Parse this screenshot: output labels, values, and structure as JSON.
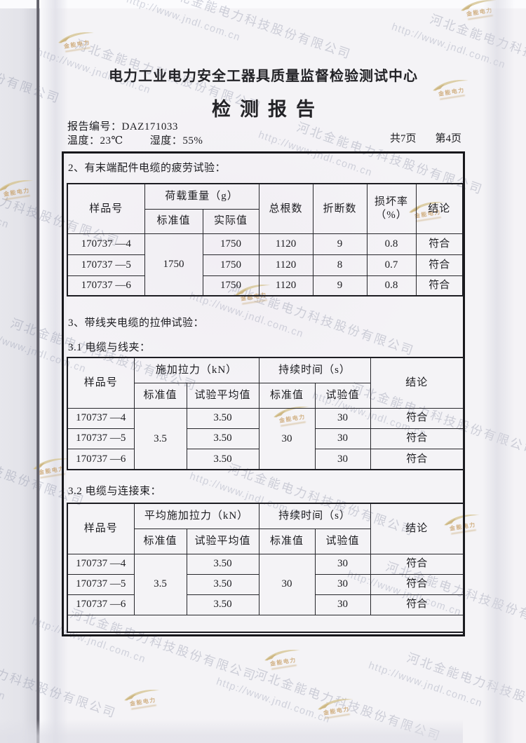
{
  "header": {
    "org": "电力工业电力安全工器具质量监督检验测试中心",
    "title": "检测报告",
    "report_no_label": "报告编号：",
    "report_no": "DAZ171033",
    "temp_label": "温度：",
    "temp": "23℃",
    "humidity_label": "湿度：",
    "humidity": "55%",
    "pages_total": "共7页",
    "page_current": "第4页"
  },
  "section2": {
    "title": "2、有末端配件电缆的疲劳试验：",
    "table": {
      "col_sample": "样品号",
      "col_load": "荷载重量（g）",
      "col_load_std": "标准值",
      "col_load_actual": "实际值",
      "col_total": "总根数",
      "col_broken": "折断数",
      "col_damage": "损坏率\n（%）",
      "col_conclusion": "结论",
      "std_value": "1750",
      "rows": [
        {
          "sample": "170737 —4",
          "actual": "1750",
          "total": "1120",
          "broken": "9",
          "damage": "0.8",
          "conclusion": "符合"
        },
        {
          "sample": "170737 —5",
          "actual": "1750",
          "total": "1120",
          "broken": "8",
          "damage": "0.7",
          "conclusion": "符合"
        },
        {
          "sample": "170737 —6",
          "actual": "1750",
          "total": "1120",
          "broken": "9",
          "damage": "0.8",
          "conclusion": "符合"
        }
      ]
    }
  },
  "section3": {
    "title": "3、带线夹电缆的拉伸试验：",
    "sub1": {
      "title": "3.1 电缆与线夹：",
      "table": {
        "col_sample": "样品号",
        "col_force": "施加拉力（kN）",
        "col_std": "标准值",
        "col_avg": "试验平均值",
        "col_time": "持续时间（s）",
        "col_time_std": "标准值",
        "col_time_test": "试验值",
        "col_conclusion": "结论",
        "force_std": "3.5",
        "time_std": "30",
        "rows": [
          {
            "sample": "170737 —4",
            "avg": "3.50",
            "time": "30",
            "conclusion": "符合"
          },
          {
            "sample": "170737 —5",
            "avg": "3.50",
            "time": "30",
            "conclusion": "符合"
          },
          {
            "sample": "170737 —6",
            "avg": "3.50",
            "time": "30",
            "conclusion": "符合"
          }
        ]
      }
    },
    "sub2": {
      "title": "3.2 电缆与连接束：",
      "table": {
        "col_sample": "样品号",
        "col_force": "平均施加拉力（kN）",
        "col_std": "标准值",
        "col_avg": "试验平均值",
        "col_time": "持续时间（s）",
        "col_time_std": "标准值",
        "col_time_test": "试验值",
        "col_conclusion": "结论",
        "force_std": "3.5",
        "time_std": "30",
        "rows": [
          {
            "sample": "170737 —4",
            "avg": "3.50",
            "time": "30",
            "conclusion": "符合"
          },
          {
            "sample": "170737 —5",
            "avg": "3.50",
            "time": "30",
            "conclusion": "符合"
          },
          {
            "sample": "170737 —6",
            "avg": "3.50",
            "time": "30",
            "conclusion": "符合"
          }
        ]
      }
    }
  },
  "watermark": {
    "company": "河北金能电力科技股份有限公司",
    "url": "http://www.jndl.com.cn",
    "logo_text": "金能电力"
  },
  "colors": {
    "ink": "#1c1c20",
    "watermark_gray": "#848aa2",
    "logo_tan": "#c79c61"
  }
}
